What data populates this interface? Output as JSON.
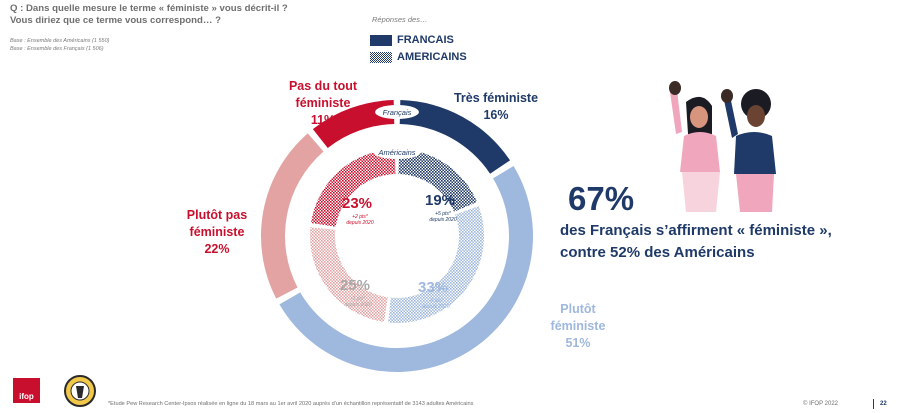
{
  "question": {
    "line1": "Q : Dans quelle mesure le terme « féministe » vous décrit-il ?",
    "line2": "Vous diriez que ce terme vous correspond… ?"
  },
  "base": {
    "line1": "Base : Ensemble des Américains (1 550)",
    "line2": "Base : Ensemble des Français (1 506)"
  },
  "legend": {
    "title": "Réponses des…",
    "items": [
      {
        "label": "FRANCAIS",
        "pattern": "solid",
        "color": "#1f3a68"
      },
      {
        "label": "AMERICAINS",
        "pattern": "dotted",
        "color": "#1f3a68"
      }
    ]
  },
  "ring_labels": {
    "outer": "Français",
    "inner": "Américains"
  },
  "chart_data": {
    "type": "pie",
    "subtype": "double-donut",
    "series": [
      {
        "name": "Français",
        "ring": "outer",
        "categories": [
          "Très féministe",
          "Plutôt féministe",
          "Plutôt pas féministe",
          "Pas du tout féministe"
        ],
        "values": [
          16,
          51,
          22,
          11
        ],
        "labels": [
          "16%",
          "51%",
          "22%",
          "11%"
        ]
      },
      {
        "name": "Américains",
        "ring": "inner",
        "categories": [
          "Très féministe",
          "Plutôt féministe",
          "Plutôt pas féministe",
          "Pas du tout féministe"
        ],
        "values": [
          19,
          33,
          25,
          23
        ],
        "labels": [
          "19%",
          "33%",
          "25%",
          "23%"
        ],
        "changes": [
          "+5 pts* depuis 2020",
          "-4 pts* depuis 2020",
          "-3 pts* depuis 2020",
          "+2 pts* depuis 2020"
        ]
      }
    ],
    "colors": [
      "#1f3a68",
      "#9fb8dd",
      "#e3a3a3",
      "#c8102e"
    ],
    "category_labels": [
      {
        "lines": [
          "Très féministe"
        ],
        "pct": "16%",
        "color": "#1f3a68"
      },
      {
        "lines": [
          "Plutôt",
          "féministe"
        ],
        "pct": "51%",
        "color": "#9fb8dd"
      },
      {
        "lines": [
          "Plutôt pas",
          "féministe"
        ],
        "pct": "22%",
        "color": "#c8102e"
      },
      {
        "lines": [
          "Pas du tout",
          "féministe"
        ],
        "pct": "11%",
        "color": "#c8102e"
      }
    ],
    "inner_label_colors": [
      "#1f3a68",
      "#9fb8dd",
      "#a8a8a8",
      "#c8102e"
    ]
  },
  "headline": {
    "pct": "67%",
    "line1": "des Français s’affirment « féministe »,",
    "line2": "contre 52% des Américains"
  },
  "footer": {
    "logo": "ifop",
    "footnote": "*Etude Pew Research Center-Ipsos réalisée en ligne du 18 mars au 1er avril 2020 auprès d’un échantillon représentatif de 3143 adultes Américains",
    "copyright": "© IFOP 2022",
    "page": "22"
  }
}
